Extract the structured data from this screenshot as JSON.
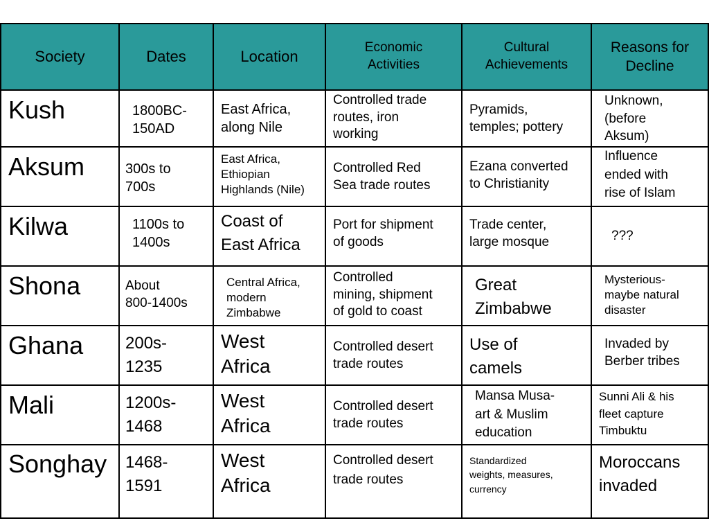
{
  "headers": {
    "society": "Society",
    "dates": "Dates",
    "location": "Location",
    "economic": "Economic\nActivities",
    "cultural": "Cultural\nAchievements",
    "decline": "Reasons for\nDecline"
  },
  "rows": [
    {
      "society": "Kush",
      "dates": "1800BC-\n150AD",
      "location": "East Africa,\nalong Nile",
      "economic": "Controlled trade\nroutes, iron\nworking",
      "cultural": "Pyramids,\ntemples; pottery",
      "decline": "Unknown,\n(before\nAksum)"
    },
    {
      "society": "Aksum",
      "dates": "300s to\n700s",
      "location": "East Africa,\nEthiopian\nHighlands (Nile)",
      "economic": "Controlled Red\nSea trade routes",
      "cultural": "Ezana converted\nto Christianity",
      "decline": "Influence\nended with\nrise of Islam"
    },
    {
      "society": "Kilwa",
      "dates": "1100s to\n1400s",
      "location": "Coast of\nEast Africa",
      "economic": "Port for shipment\nof goods",
      "cultural": "Trade center,\nlarge mosque",
      "decline": "???"
    },
    {
      "society": "Shona",
      "dates": "About\n800-1400s",
      "location": "Central Africa,\nmodern\nZimbabwe",
      "economic": "Controlled\nmining, shipment\nof gold to coast",
      "cultural": "Great\nZimbabwe",
      "decline": "Mysterious-\nmaybe natural\ndisaster"
    },
    {
      "society": "Ghana",
      "dates": "200s-\n1235",
      "location": "West\nAfrica",
      "economic": "Controlled desert\ntrade routes",
      "cultural": "Use of\ncamels",
      "decline": "Invaded by\nBerber tribes"
    },
    {
      "society": "Mali",
      "dates": "1200s-\n1468",
      "location": "West\nAfrica",
      "economic": "Controlled desert\ntrade routes",
      "cultural": "Mansa Musa-\nart & Muslim\neducation",
      "decline": "Sunni Ali & his\nfleet capture\nTimbuktu"
    },
    {
      "society": "Songhay",
      "dates": "1468-\n1591",
      "location": "West\nAfrica",
      "economic": "Controlled desert\ntrade routes",
      "cultural": "Standardized\nweights, measures,\ncurrency",
      "decline": "Moroccans\ninvaded"
    }
  ]
}
